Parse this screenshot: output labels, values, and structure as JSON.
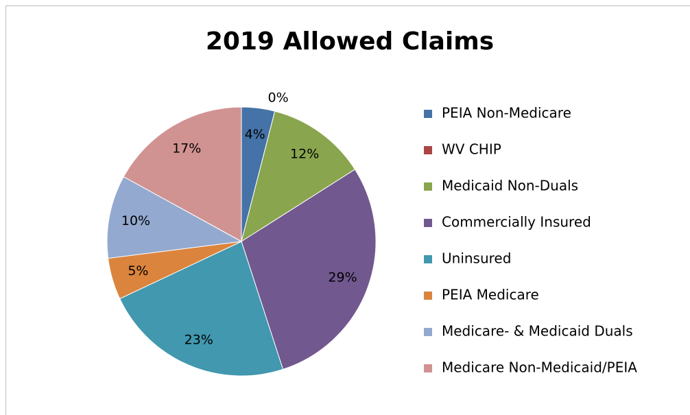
{
  "chart_data": {
    "type": "pie",
    "title": "2019 Allowed Claims",
    "categories": [
      "PEIA Non-Medicare",
      "WV CHIP",
      "Medicaid Non-Duals",
      "Commercially Insured",
      "Uninsured",
      "PEIA Medicare",
      "Medicare- & Medicaid Duals",
      "Medicare Non-Medicaid/PEIA"
    ],
    "values": [
      4,
      0,
      12,
      29,
      23,
      5,
      10,
      17
    ],
    "value_labels": [
      "4%",
      "0%",
      "12%",
      "29%",
      "23%",
      "5%",
      "10%",
      "17%"
    ],
    "colors": [
      "#4572a7",
      "#aa4643",
      "#89a54e",
      "#71588f",
      "#4198af",
      "#db843d",
      "#93a9cf",
      "#d19392"
    ],
    "legend": "right"
  }
}
